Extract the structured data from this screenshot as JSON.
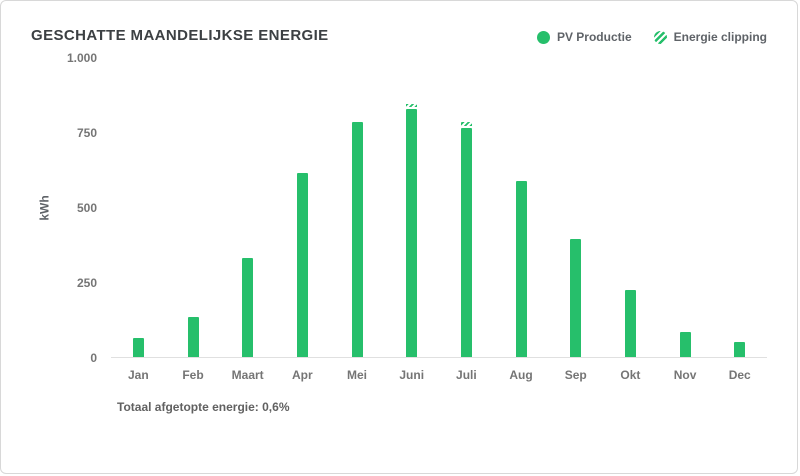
{
  "header": {
    "title": "GESCHATTE MAANDELIJKSE ENERGIE"
  },
  "legend": {
    "items": [
      {
        "label": "PV Productie",
        "style": "solid"
      },
      {
        "label": "Energie clipping",
        "style": "striped"
      }
    ]
  },
  "colors": {
    "green": "#26bf6b"
  },
  "axis": {
    "y_label": "kWh",
    "y_ticks": [
      "1.000",
      "750",
      "500",
      "250",
      "0"
    ]
  },
  "chart_data": {
    "type": "bar",
    "title": "GESCHATTE MAANDELIJKSE ENERGIE",
    "xlabel": "",
    "ylabel": "kWh",
    "ylim": [
      0,
      1000
    ],
    "grid": false,
    "legend_position": "top-right",
    "categories": [
      "Jan",
      "Feb",
      "Maart",
      "Apr",
      "Mei",
      "Juni",
      "Juli",
      "Aug",
      "Sep",
      "Okt",
      "Nov",
      "Dec"
    ],
    "series": [
      {
        "name": "PV Productie",
        "values": [
          65,
          135,
          330,
          615,
          785,
          830,
          765,
          590,
          395,
          225,
          85,
          50
        ]
      },
      {
        "name": "Energie clipping",
        "values": [
          0,
          0,
          0,
          0,
          0,
          10,
          15,
          0,
          0,
          0,
          0,
          0
        ]
      }
    ]
  },
  "footer": {
    "note": "Totaal afgetopte energie: 0,6%"
  }
}
